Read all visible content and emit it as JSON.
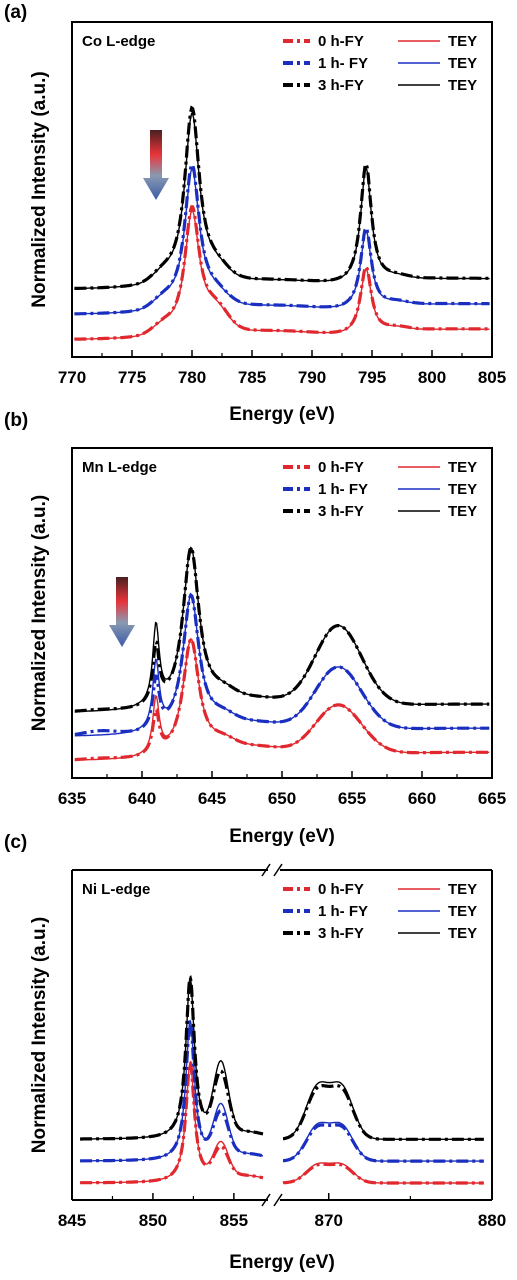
{
  "chart_data": [
    {
      "type": "line",
      "panel": "(a)",
      "edge_label": "Co L-edge",
      "xlabel": "Energy (eV)",
      "ylabel": "Normalized Intensity (a.u.)",
      "xlim": [
        770,
        805
      ],
      "x_ticks": [
        770,
        775,
        780,
        785,
        790,
        795,
        800,
        805
      ],
      "colors": {
        "0h": "#e0282f",
        "1h": "#1a2fc0",
        "3h": "#000000"
      },
      "legend": [
        {
          "fy": "0 h-FY",
          "tey": "TEY"
        },
        {
          "fy": "1 h- FY",
          "tey": "TEY"
        },
        {
          "fy": "3 h-FY",
          "tey": "TEY"
        }
      ],
      "series_offsets": [
        0,
        0.28,
        0.56
      ],
      "peaks": [
        {
          "x": 780.0,
          "y": [
            1.42,
            1.62,
            1.97
          ]
        },
        {
          "x": 794.5,
          "y": [
            0.76,
            0.91,
            1.34
          ]
        }
      ]
    },
    {
      "type": "line",
      "panel": "(b)",
      "edge_label": "Mn L-edge",
      "xlabel": "Energy (eV)",
      "ylabel": "Normalized Intensity (a.u.)",
      "xlim": [
        635,
        665
      ],
      "x_ticks": [
        635,
        640,
        645,
        650,
        655,
        660,
        665
      ],
      "colors": {
        "0h": "#e0282f",
        "1h": "#1a2fc0",
        "3h": "#000000"
      },
      "legend": [
        {
          "fy": "0 h-FY",
          "tey": "TEY"
        },
        {
          "fy": "1 h- FY",
          "tey": "TEY"
        },
        {
          "fy": "3 h-FY",
          "tey": "TEY"
        }
      ],
      "series_offsets": [
        0,
        0.28,
        0.56
      ],
      "peaks": [
        {
          "x": 641.0,
          "y": [
            0.65,
            0.78,
            0.91
          ]
        },
        {
          "x": 643.5,
          "y": [
            1.35,
            1.58,
            1.85
          ]
        },
        {
          "x": 654.0,
          "y": [
            0.62,
            0.78,
            0.98
          ]
        }
      ]
    },
    {
      "type": "line",
      "panel": "(c)",
      "edge_label": "Ni L-edge",
      "xlabel": "Energy (eV)",
      "ylabel": "Normalized Intensity (a.u.)",
      "xlim": [
        845,
        880
      ],
      "axis_break": [
        857,
        867
      ],
      "x_ticks": [
        845,
        850,
        855,
        870,
        880
      ],
      "colors": {
        "0h": "#e0282f",
        "1h": "#1a2fc0",
        "3h": "#000000"
      },
      "legend": [
        {
          "fy": "0 h-FY",
          "tey": "TEY"
        },
        {
          "fy": "1 h- FY",
          "tey": "TEY"
        },
        {
          "fy": "3 h-FY",
          "tey": "TEY"
        }
      ],
      "series_offsets": [
        0,
        0.28,
        0.56
      ],
      "peaks": [
        {
          "x": 852.3,
          "y": [
            1.52,
            1.78,
            2.05
          ]
        },
        {
          "x": 854.2,
          "y": [
            0.42,
            0.62,
            0.88
          ]
        },
        {
          "x": 870.0,
          "y": [
            0.3,
            0.58,
            0.86
          ]
        }
      ]
    }
  ]
}
